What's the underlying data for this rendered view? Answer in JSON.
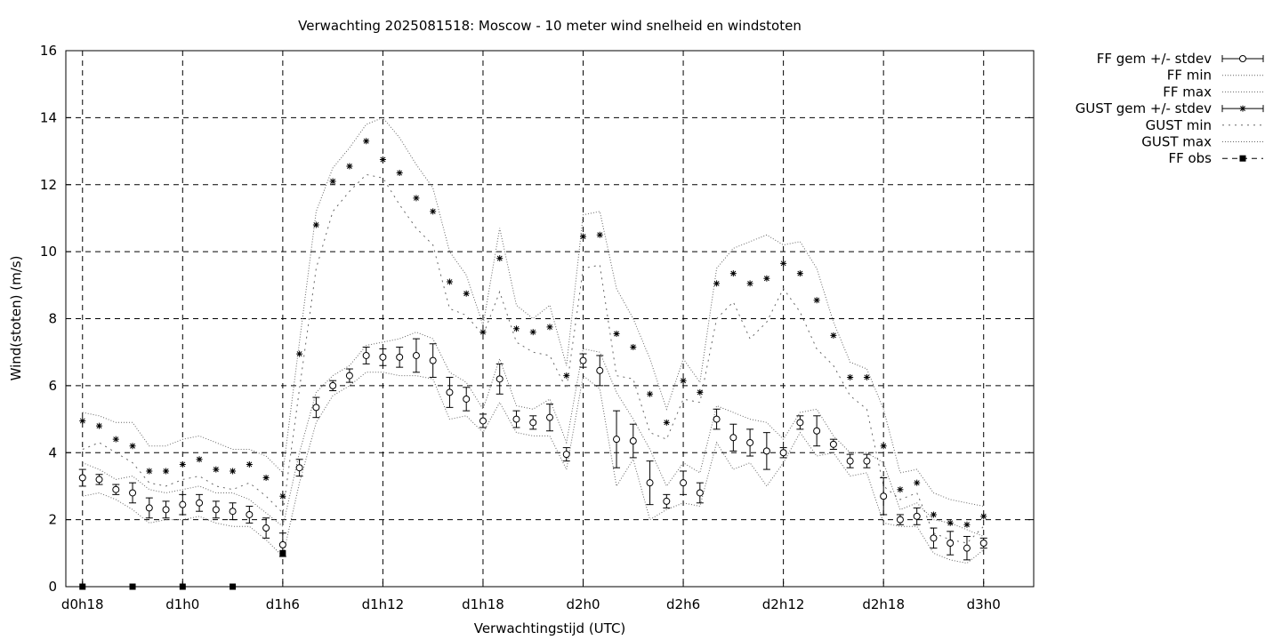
{
  "chart_data": {
    "type": "line",
    "title": "Verwachting 2025081518: Moscow - 10 meter wind snelheid en windstoten",
    "xlabel": "Verwachtingstijd (UTC)",
    "ylabel": "Wind(stoten) (m/s)",
    "ylim": [
      0,
      16
    ],
    "xlim": [
      -1,
      57
    ],
    "x_unit": "hours since d0h18",
    "grid": true,
    "legend_position": "outside-right",
    "yticks": [
      0,
      2,
      4,
      6,
      8,
      10,
      12,
      14,
      16
    ],
    "xticks": [
      {
        "x": 0,
        "label": "d0h18"
      },
      {
        "x": 6,
        "label": "d1h0"
      },
      {
        "x": 12,
        "label": "d1h6"
      },
      {
        "x": 18,
        "label": "d1h12"
      },
      {
        "x": 24,
        "label": "d1h18"
      },
      {
        "x": 30,
        "label": "d2h0"
      },
      {
        "x": 36,
        "label": "d2h6"
      },
      {
        "x": 42,
        "label": "d2h12"
      },
      {
        "x": 48,
        "label": "d2h18"
      },
      {
        "x": 54,
        "label": "d3h0"
      }
    ],
    "x": [
      0,
      1,
      2,
      3,
      4,
      5,
      6,
      7,
      8,
      9,
      10,
      11,
      12,
      13,
      14,
      15,
      16,
      17,
      18,
      19,
      20,
      21,
      22,
      23,
      24,
      25,
      26,
      27,
      28,
      29,
      30,
      31,
      32,
      33,
      34,
      35,
      36,
      37,
      38,
      39,
      40,
      41,
      42,
      43,
      44,
      45,
      46,
      47,
      48,
      49,
      50,
      51,
      52,
      53,
      54
    ],
    "series": [
      {
        "name": "FF gem +/- stdev",
        "style": "errorbar-circle",
        "values": [
          3.25,
          3.2,
          2.9,
          2.8,
          2.35,
          2.3,
          2.45,
          2.5,
          2.3,
          2.25,
          2.15,
          1.75,
          1.25,
          3.55,
          5.35,
          6.0,
          6.3,
          6.9,
          6.85,
          6.85,
          6.9,
          6.75,
          5.8,
          5.6,
          4.95,
          6.2,
          5.0,
          4.9,
          5.05,
          3.95,
          6.75,
          6.45,
          4.4,
          4.35,
          3.1,
          2.55,
          3.1,
          2.8,
          5.0,
          4.45,
          4.3,
          4.05,
          4.0,
          4.9,
          4.65,
          4.25,
          3.75,
          3.75,
          2.7,
          2.0,
          2.1,
          1.45,
          1.3,
          1.15,
          1.3
        ],
        "stdev": [
          0.25,
          0.15,
          0.15,
          0.3,
          0.3,
          0.25,
          0.3,
          0.25,
          0.25,
          0.25,
          0.25,
          0.3,
          0.35,
          0.25,
          0.3,
          0.15,
          0.2,
          0.25,
          0.25,
          0.3,
          0.5,
          0.5,
          0.45,
          0.35,
          0.2,
          0.45,
          0.25,
          0.2,
          0.4,
          0.2,
          0.2,
          0.45,
          0.85,
          0.5,
          0.65,
          0.2,
          0.35,
          0.3,
          0.3,
          0.4,
          0.4,
          0.55,
          0.15,
          0.2,
          0.45,
          0.15,
          0.2,
          0.2,
          0.55,
          0.15,
          0.25,
          0.3,
          0.35,
          0.35,
          0.15
        ]
      },
      {
        "name": "FF min",
        "style": "dotted",
        "values": [
          2.7,
          2.8,
          2.6,
          2.3,
          1.9,
          2.0,
          2.0,
          2.1,
          1.9,
          1.8,
          1.8,
          1.4,
          0.9,
          3.1,
          4.9,
          5.7,
          6.0,
          6.4,
          6.4,
          6.3,
          6.3,
          6.2,
          5.0,
          5.1,
          4.6,
          5.5,
          4.6,
          4.5,
          4.5,
          3.5,
          6.3,
          5.9,
          3.0,
          3.8,
          2.0,
          2.3,
          2.5,
          2.4,
          4.3,
          3.5,
          3.7,
          3.0,
          3.7,
          4.6,
          3.9,
          4.0,
          3.3,
          3.4,
          1.9,
          1.8,
          1.8,
          1.0,
          0.8,
          0.7,
          1.1
        ]
      },
      {
        "name": "FF max",
        "style": "dotted",
        "values": [
          3.7,
          3.5,
          3.2,
          3.3,
          2.9,
          2.8,
          2.9,
          3.0,
          2.8,
          2.8,
          2.6,
          2.2,
          1.8,
          4.0,
          5.8,
          6.3,
          6.6,
          7.2,
          7.3,
          7.4,
          7.6,
          7.4,
          6.4,
          6.1,
          5.3,
          6.8,
          5.4,
          5.3,
          5.6,
          4.3,
          7.1,
          7.0,
          5.8,
          5.0,
          4.1,
          3.0,
          3.7,
          3.4,
          5.4,
          5.2,
          5.0,
          4.9,
          4.4,
          5.2,
          5.3,
          4.5,
          4.0,
          4.0,
          3.7,
          2.3,
          2.5,
          2.0,
          1.9,
          1.7,
          1.5
        ]
      },
      {
        "name": "GUST gem +/- stdev",
        "style": "errorbar-star",
        "values": [
          4.95,
          4.8,
          4.4,
          4.2,
          3.45,
          3.45,
          3.65,
          3.8,
          3.5,
          3.45,
          3.65,
          3.25,
          2.7,
          6.95,
          10.8,
          12.1,
          12.55,
          13.3,
          12.75,
          12.35,
          11.6,
          11.2,
          9.1,
          8.75,
          7.6,
          9.8,
          7.7,
          7.6,
          7.75,
          6.3,
          10.45,
          10.5,
          7.55,
          7.15,
          5.75,
          4.9,
          6.15,
          5.8,
          9.05,
          9.35,
          9.05,
          9.2,
          9.65,
          9.35,
          8.55,
          7.5,
          6.25,
          6.25,
          4.2,
          2.9,
          3.1,
          2.15,
          1.9,
          1.85,
          2.1
        ]
      },
      {
        "name": "GUST min",
        "style": "dotted-sparse",
        "values": [
          4.1,
          4.3,
          4.0,
          3.7,
          3.1,
          3.0,
          3.2,
          3.3,
          3.0,
          2.9,
          3.1,
          2.7,
          2.2,
          5.9,
          9.5,
          11.2,
          11.8,
          12.3,
          12.2,
          11.4,
          10.7,
          10.2,
          8.3,
          8.1,
          7.5,
          8.8,
          7.3,
          7.0,
          6.9,
          5.9,
          9.5,
          9.6,
          6.3,
          6.2,
          4.6,
          4.4,
          5.6,
          5.5,
          8.0,
          8.5,
          7.4,
          7.9,
          8.9,
          8.2,
          7.1,
          6.6,
          5.7,
          5.3,
          3.0,
          2.6,
          2.8,
          1.6,
          1.4,
          1.3,
          1.8
        ]
      },
      {
        "name": "GUST max",
        "style": "dotted",
        "values": [
          5.2,
          5.1,
          4.9,
          4.9,
          4.2,
          4.2,
          4.4,
          4.5,
          4.3,
          4.1,
          4.1,
          3.9,
          3.4,
          7.3,
          11.2,
          12.5,
          13.1,
          13.8,
          14.0,
          13.4,
          12.6,
          11.9,
          10.0,
          9.3,
          7.8,
          10.7,
          8.4,
          8.0,
          8.4,
          6.6,
          11.1,
          11.2,
          8.9,
          8.0,
          6.8,
          5.3,
          6.8,
          6.1,
          9.5,
          10.1,
          10.3,
          10.5,
          10.2,
          10.3,
          9.5,
          7.9,
          6.7,
          6.5,
          5.3,
          3.4,
          3.5,
          2.8,
          2.6,
          2.5,
          2.4
        ]
      },
      {
        "name": "FF obs",
        "style": "obs-square",
        "x": [
          0,
          3,
          6,
          9,
          12
        ],
        "values": [
          0,
          0,
          0,
          0,
          1
        ]
      }
    ]
  }
}
